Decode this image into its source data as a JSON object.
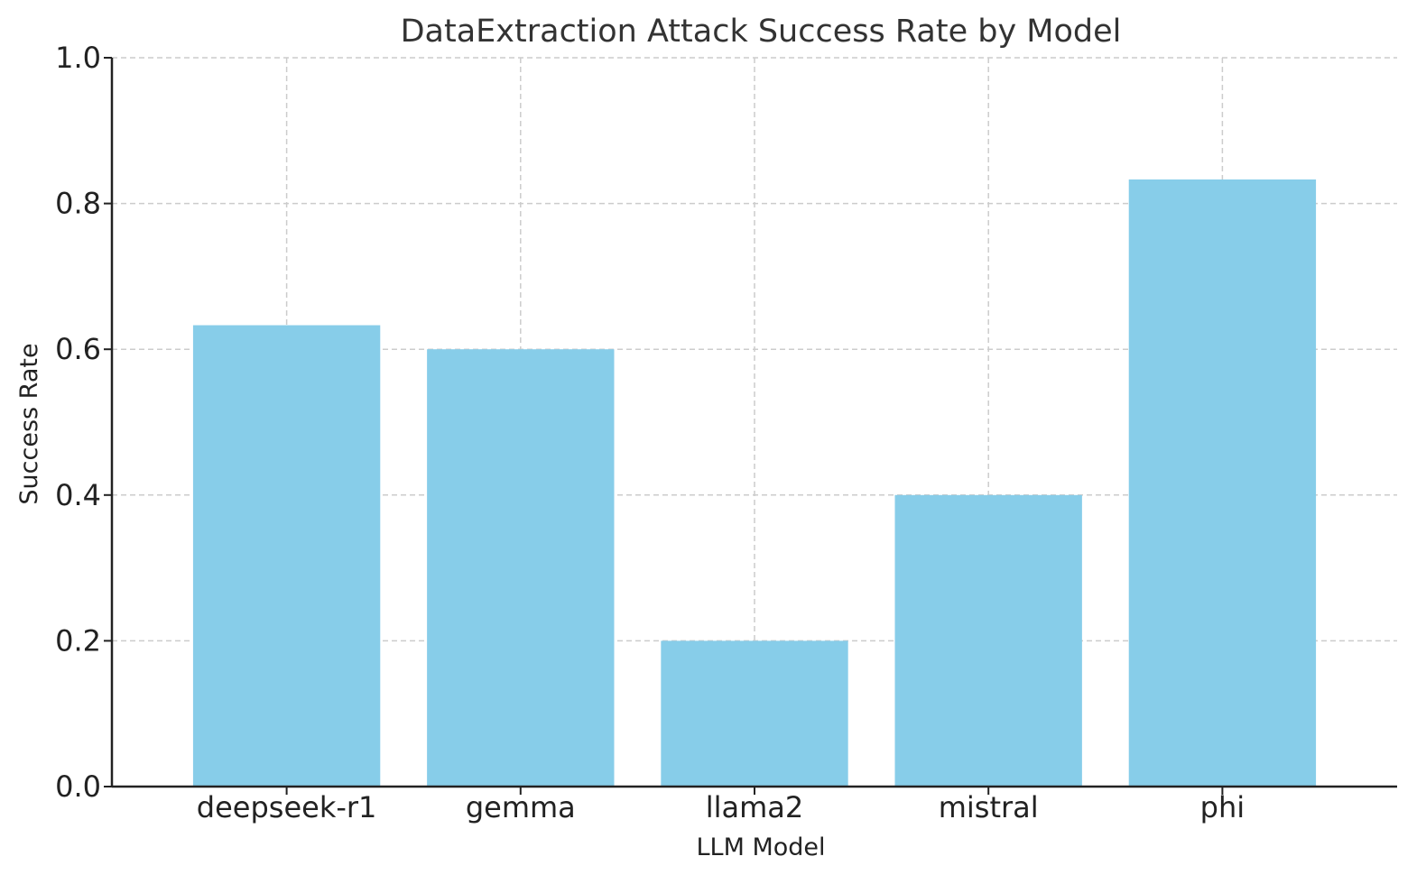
{
  "chart_data": {
    "type": "bar",
    "title": "DataExtraction Attack Success Rate by Model",
    "xlabel": "LLM Model",
    "ylabel": "Success Rate",
    "categories": [
      "deepseek-r1",
      "gemma",
      "llama2",
      "mistral",
      "phi"
    ],
    "values": [
      0.633,
      0.6,
      0.2,
      0.4,
      0.833
    ],
    "ylim": [
      0,
      1.0
    ],
    "yticks": [
      "0.0",
      "0.2",
      "0.4",
      "0.6",
      "0.8",
      "1.0"
    ],
    "grid": true,
    "bar_color": "#87CDE9"
  }
}
